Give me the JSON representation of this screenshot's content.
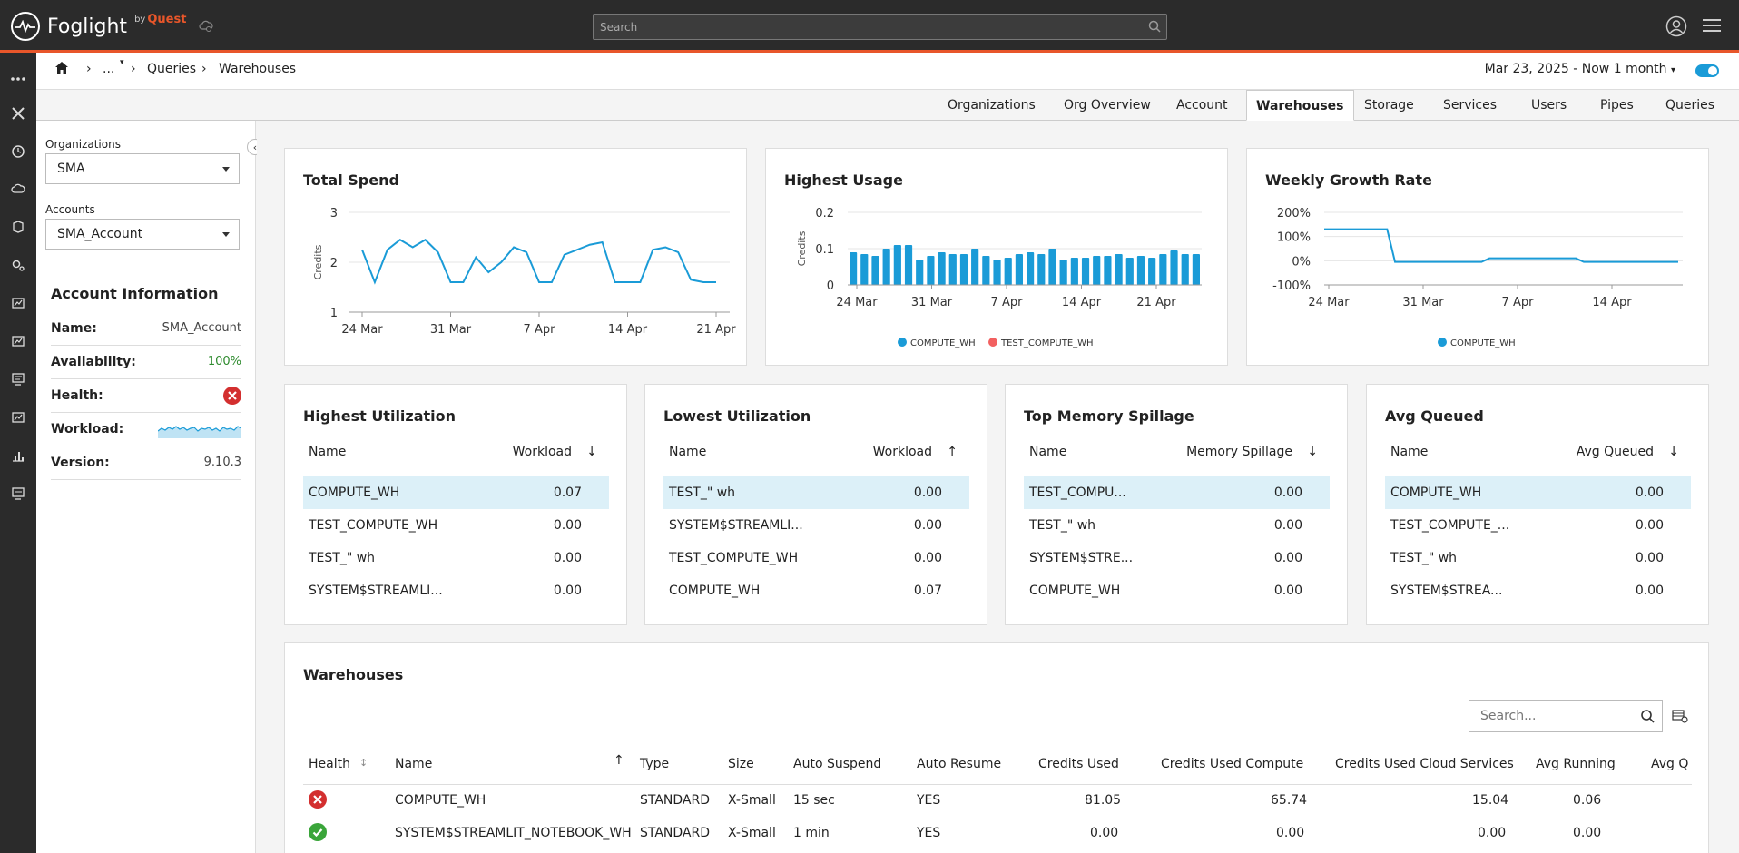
{
  "brand": {
    "name": "Foglight",
    "by": "by",
    "quest": "Quest"
  },
  "search": {
    "placeholder": "Search"
  },
  "breadcrumb": {
    "ellipsis": "...",
    "items": [
      "Queries",
      "Warehouses"
    ]
  },
  "daterange": "Mar 23, 2025 - Now 1 month",
  "tabs": [
    "Organizations",
    "Org Overview",
    "Account",
    "Warehouses",
    "Storage",
    "Services",
    "Users",
    "Pipes",
    "Queries"
  ],
  "active_tab": "Warehouses",
  "sidebar": {
    "org_label": "Organizations",
    "org_value": "SMA",
    "acct_label": "Accounts",
    "acct_value": "SMA_Account",
    "info_title": "Account Information",
    "rows": [
      {
        "key": "Name:",
        "value": "SMA_Account"
      },
      {
        "key": "Availability:",
        "value": "100%"
      },
      {
        "key": "Health:",
        "value": ""
      },
      {
        "key": "Workload:",
        "value": ""
      },
      {
        "key": "Version:",
        "value": "9.10.3"
      }
    ],
    "availability_color": "#2e8b2e",
    "health_color": "#d32f2f"
  },
  "colors": {
    "accent": "#1a9bd7",
    "brand": "#e8562a",
    "red": "#f26060",
    "green": "#3aa53a"
  },
  "chart_data": [
    {
      "type": "line",
      "title": "Total Spend",
      "ylabel": "Credits",
      "ylim": [
        1,
        3
      ],
      "yticks": [
        "3",
        "2",
        "1"
      ],
      "xticks": [
        "24 Mar",
        "31 Mar",
        "7 Apr",
        "14 Apr",
        "21 Apr"
      ],
      "series": [
        {
          "values": [
            2.25,
            1.6,
            2.25,
            2.45,
            2.3,
            2.45,
            2.2,
            1.6,
            1.6,
            2.1,
            1.8,
            2.0,
            2.3,
            2.2,
            1.6,
            1.6,
            2.15,
            2.25,
            2.35,
            2.4,
            1.6,
            1.6,
            1.6,
            2.25,
            2.3,
            2.2,
            1.65,
            1.6,
            1.6
          ]
        }
      ]
    },
    {
      "type": "bar",
      "title": "Highest Usage",
      "ylabel": "Credits",
      "ylim": [
        0,
        0.2
      ],
      "yticks": [
        "0.2",
        "0.1",
        "0"
      ],
      "xticks": [
        "24 Mar",
        "31 Mar",
        "7 Apr",
        "14 Apr",
        "21 Apr"
      ],
      "series": [
        {
          "name": "COMPUTE_WH",
          "values": [
            0.09,
            0.085,
            0.08,
            0.1,
            0.11,
            0.11,
            0.07,
            0.08,
            0.09,
            0.085,
            0.085,
            0.1,
            0.08,
            0.07,
            0.075,
            0.085,
            0.09,
            0.085,
            0.1,
            0.07,
            0.075,
            0.075,
            0.08,
            0.08,
            0.085,
            0.075,
            0.08,
            0.075,
            0.085,
            0.095,
            0.085,
            0.085
          ]
        },
        {
          "name": "TEST_COMPUTE_WH",
          "values": [
            0,
            0,
            0,
            0,
            0,
            0,
            0,
            0,
            0,
            0,
            0,
            0,
            0,
            0,
            0,
            0,
            0,
            0,
            0,
            0,
            0,
            0,
            0,
            0,
            0,
            0,
            0,
            0,
            0,
            0,
            0,
            0
          ]
        }
      ]
    },
    {
      "type": "line",
      "title": "Weekly Growth Rate",
      "ylim": [
        -100,
        200
      ],
      "yticks": [
        "200%",
        "100%",
        "0%",
        "-100%"
      ],
      "xticks": [
        "24 Mar",
        "31 Mar",
        "7 Apr",
        "14 Apr"
      ],
      "series": [
        {
          "name": "COMPUTE_WH",
          "values": [
            130,
            130,
            130,
            130,
            130,
            130,
            130,
            130,
            130,
            -5,
            -5,
            -5,
            -5,
            -5,
            -5,
            -5,
            -5,
            -5,
            -5,
            -5,
            -5,
            10,
            10,
            10,
            10,
            10,
            10,
            10,
            10,
            10,
            10,
            10,
            10,
            -5,
            -5,
            -5,
            -5,
            -5,
            -5,
            -5,
            -5,
            -5,
            -5,
            -5,
            -5,
            -5
          ]
        }
      ]
    }
  ],
  "top_tables": [
    {
      "title": "Highest Utilization",
      "col1": "Name",
      "col2": "Workload",
      "arrow": "↓",
      "rows": [
        [
          "COMPUTE_WH",
          "0.07"
        ],
        [
          "TEST_COMPUTE_WH",
          "0.00"
        ],
        [
          "TEST_\" wh",
          "0.00"
        ],
        [
          "SYSTEM$STREAMLI...",
          "0.00"
        ]
      ]
    },
    {
      "title": "Lowest Utilization",
      "col1": "Name",
      "col2": "Workload",
      "arrow": "↑",
      "rows": [
        [
          "TEST_\" wh",
          "0.00"
        ],
        [
          "SYSTEM$STREAMLI...",
          "0.00"
        ],
        [
          "TEST_COMPUTE_WH",
          "0.00"
        ],
        [
          "COMPUTE_WH",
          "0.07"
        ]
      ]
    },
    {
      "title": "Top Memory Spillage",
      "col1": "Name",
      "col2": "Memory Spillage",
      "arrow": "↓",
      "rows": [
        [
          "TEST_COMPU...",
          "0.00"
        ],
        [
          "TEST_\" wh",
          "0.00"
        ],
        [
          "SYSTEM$STRE...",
          "0.00"
        ],
        [
          "COMPUTE_WH",
          "0.00"
        ]
      ]
    },
    {
      "title": "Avg Queued",
      "col1": "Name",
      "col2": "Avg Queued",
      "arrow": "↓",
      "rows": [
        [
          "COMPUTE_WH",
          "0.00"
        ],
        [
          "TEST_COMPUTE_...",
          "0.00"
        ],
        [
          "TEST_\" wh",
          "0.00"
        ],
        [
          "SYSTEM$STREA...",
          "0.00"
        ]
      ]
    }
  ],
  "warehouses": {
    "title": "Warehouses",
    "search_placeholder": "Search...",
    "columns": [
      "Health",
      "Name",
      "Type",
      "Size",
      "Auto Suspend",
      "Auto Resume",
      "Credits Used",
      "Credits Used Compute",
      "Credits Used Cloud Services",
      "Avg Running",
      "Avg Q"
    ],
    "health_sort": "↕",
    "name_sort": "↑",
    "rows": [
      {
        "health": "error",
        "name": "COMPUTE_WH",
        "type": "STANDARD",
        "size": "X-Small",
        "suspend": "15 sec",
        "resume": "YES",
        "credits": "81.05",
        "compute": "65.74",
        "cloud": "15.04",
        "running": "0.06"
      },
      {
        "health": "ok",
        "name": "SYSTEM$STREAMLIT_NOTEBOOK_WH",
        "type": "STANDARD",
        "size": "X-Small",
        "suspend": "1 min",
        "resume": "YES",
        "credits": "0.00",
        "compute": "0.00",
        "cloud": "0.00",
        "running": "0.00"
      }
    ]
  }
}
